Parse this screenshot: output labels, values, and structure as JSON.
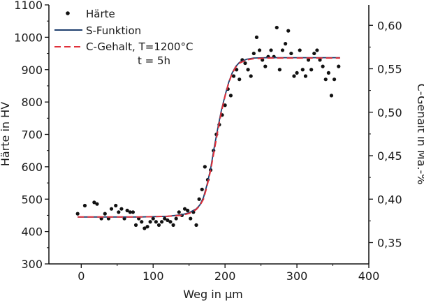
{
  "chart_data": {
    "type": "scatter",
    "xlabel": "Weg in µm",
    "ylabel": "Härte in HV",
    "y2label": "C-Gehalt in Ma.-%",
    "xlim": [
      -45,
      400
    ],
    "ylim": [
      300,
      1100
    ],
    "y2lim": [
      0.3255,
      0.6235
    ],
    "x_ticks": [
      0,
      100,
      200,
      300,
      400
    ],
    "y_ticks": [
      300,
      400,
      500,
      600,
      700,
      800,
      900,
      1000,
      1100
    ],
    "y2_ticks": [
      0.35,
      0.4,
      0.45,
      0.5,
      0.55,
      0.6
    ],
    "x_tick_labels": [
      "0",
      "100",
      "200",
      "300",
      "400"
    ],
    "y_tick_labels": [
      "300",
      "400",
      "500",
      "600",
      "700",
      "800",
      "900",
      "1000",
      "1100"
    ],
    "y2_tick_labels": [
      "0,35",
      "0,40",
      "0,45",
      "0,50",
      "0,55",
      "0,60"
    ],
    "grid": false,
    "legend_position": "top-left",
    "legend": {
      "haerte": "Härte",
      "sfunktion": "S-Funktion",
      "cgehalt_line1": "C-Gehalt, T=1200°C",
      "cgehalt_line2": "t = 5h"
    },
    "colors": {
      "points": "#111111",
      "s_funktion": "#1f3f6e",
      "c_gehalt": "#e0303a"
    },
    "series": [
      {
        "name": "Härte",
        "kind": "scatter",
        "axis": "left",
        "x": [
          -5,
          5,
          18,
          22,
          28,
          33,
          38,
          42,
          48,
          52,
          56,
          60,
          64,
          68,
          72,
          76,
          80,
          84,
          88,
          92,
          96,
          100,
          104,
          108,
          112,
          116,
          120,
          124,
          128,
          132,
          136,
          140,
          144,
          148,
          152,
          156,
          160,
          164,
          168,
          172,
          176,
          180,
          184,
          188,
          192,
          196,
          200,
          204,
          208,
          212,
          216,
          220,
          224,
          228,
          232,
          236,
          240,
          244,
          248,
          252,
          256,
          260,
          264,
          268,
          272,
          276,
          280,
          284,
          288,
          292,
          296,
          300,
          304,
          308,
          312,
          316,
          320,
          324,
          328,
          332,
          336,
          340,
          344,
          348,
          352,
          358
        ],
        "y": [
          455,
          480,
          490,
          485,
          440,
          455,
          440,
          470,
          480,
          460,
          470,
          440,
          465,
          460,
          460,
          420,
          440,
          430,
          410,
          415,
          430,
          440,
          430,
          420,
          430,
          440,
          435,
          430,
          420,
          440,
          460,
          450,
          470,
          465,
          440,
          460,
          420,
          500,
          530,
          600,
          560,
          590,
          650,
          700,
          730,
          760,
          790,
          840,
          820,
          880,
          900,
          870,
          930,
          920,
          900,
          880,
          950,
          1000,
          960,
          930,
          910,
          940,
          960,
          940,
          1030,
          900,
          960,
          980,
          1020,
          950,
          880,
          890,
          960,
          900,
          880,
          930,
          900,
          950,
          960,
          930,
          910,
          870,
          890,
          820,
          870,
          910
        ]
      },
      {
        "name": "S-Funktion",
        "kind": "line",
        "axis": "left",
        "x": [
          -5,
          20,
          40,
          60,
          80,
          100,
          120,
          140,
          150,
          160,
          165,
          170,
          175,
          180,
          185,
          190,
          195,
          200,
          205,
          210,
          215,
          220,
          230,
          240,
          260,
          280,
          300,
          320,
          340,
          360
        ],
        "y": [
          445,
          445,
          445,
          445,
          445,
          446,
          447,
          452,
          458,
          470,
          482,
          505,
          545,
          595,
          660,
          720,
          775,
          820,
          860,
          890,
          910,
          922,
          932,
          936,
          937,
          937,
          937,
          937,
          937,
          937
        ]
      },
      {
        "name": "C-Gehalt, T=1200°C t = 5h",
        "kind": "line-dashed",
        "axis": "left",
        "x": [
          -5,
          20,
          40,
          60,
          80,
          100,
          120,
          140,
          150,
          160,
          165,
          170,
          175,
          180,
          185,
          190,
          195,
          200,
          205,
          210,
          215,
          220,
          230,
          240,
          260,
          280,
          300,
          320,
          340,
          360
        ],
        "y": [
          445,
          445,
          445,
          445,
          445,
          446,
          447,
          450,
          456,
          468,
          480,
          500,
          540,
          590,
          650,
          712,
          770,
          818,
          858,
          888,
          908,
          920,
          930,
          934,
          936,
          936,
          936,
          936,
          936,
          936
        ]
      }
    ]
  }
}
